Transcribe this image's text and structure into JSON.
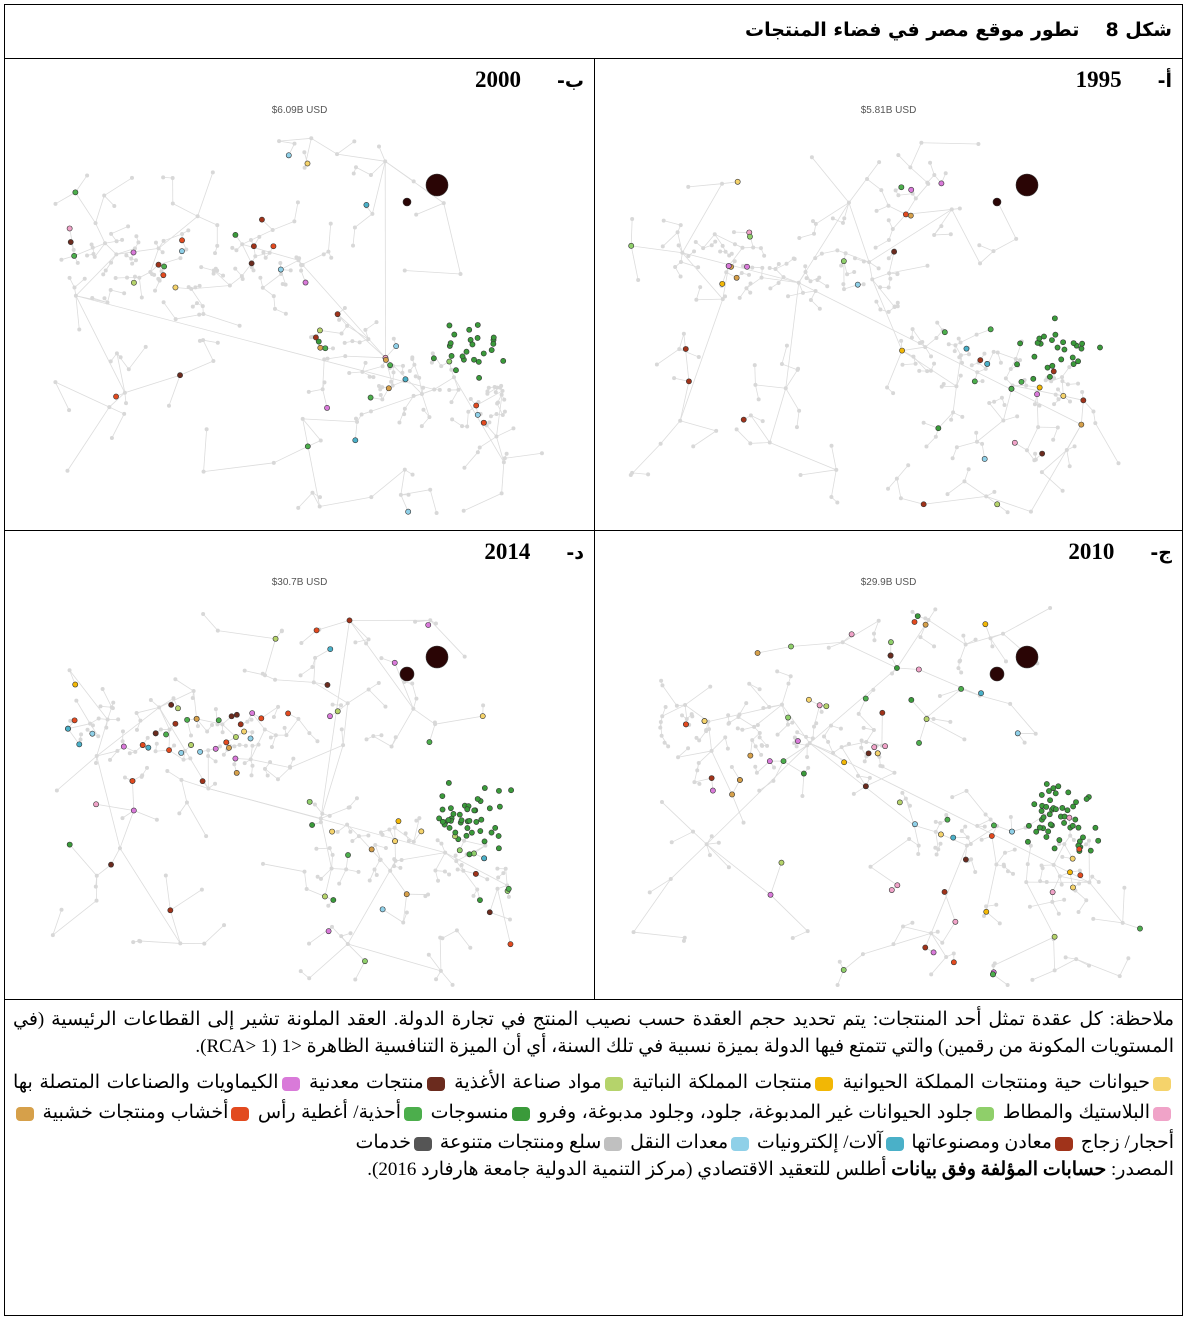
{
  "figure": {
    "label": "شكل 8",
    "title": "تطور موقع مصر في فضاء المنتجات"
  },
  "panels": [
    {
      "label": "أ-",
      "year": "1995",
      "value": "$5.81B USD"
    },
    {
      "label": "ب-",
      "year": "2000",
      "value": "$6.09B USD"
    },
    {
      "label": "ج-",
      "year": "2010",
      "value": "$29.9B USD"
    },
    {
      "label": "د-",
      "year": "2014",
      "value": "$30.7B USD"
    }
  ],
  "note": "ملاحظة: كل عقدة تمثل أحد المنتجات: يتم تحديد حجم العقدة حسب نصيب المنتج في تجارة الدولة. العقد الملونة تشير إلى القطاعات الرئيسية (في المستويات المكونة من رقمين) والتي تتمتع فيها الدولة بميزة نسبية في تلك السنة، أي أن الميزة التنافسية الظاهرة <1 (RCA> 1).",
  "legend": [
    {
      "name": "حيوانات حية ومنتجات المملكة الحيوانية",
      "color": "#f5d36b"
    },
    {
      "name": "منتجات المملكة النباتية",
      "color": "#f2b705"
    },
    {
      "name": "مواد صناعة الأغذية",
      "color": "#b5d36b"
    },
    {
      "name": "منتجات معدنية",
      "color": "#6b2b1e"
    },
    {
      "name": "الكيماويات والصناعات المتصلة بها",
      "color": "#d97ad9"
    },
    {
      "name": "البلاستيك والمطاط",
      "color": "#f0a3c8"
    },
    {
      "name": "جلود الحيوانات غير المدبوغة، جلود، وجلود مدبوغة، وفرو",
      "color": "#8fcf6a"
    },
    {
      "name": "منسوجات",
      "color": "#3a9a3a"
    },
    {
      "name": "أحذية/ أغطية رأس",
      "color": "#4cae4c"
    },
    {
      "name": "أخشاب ومنتجات خشبية",
      "color": "#e24a1f"
    },
    {
      "name": "أحجار/ زجاج",
      "color": "#d6a04a"
    },
    {
      "name": "معادن ومصنوعاتها",
      "color": "#a0331a"
    },
    {
      "name": "آلات/ إلكترونيات",
      "color": "#4ab0c8"
    },
    {
      "name": "معدات النقل",
      "color": "#8fd0e8"
    },
    {
      "name": "سلع ومنتجات متنوعة",
      "color": "#c0c0c0"
    },
    {
      "name": "خدمات",
      "color": "#555555"
    }
  ],
  "source": {
    "prefix": "المصدر:",
    "bold": "حسابات المؤلفة وفق بيانات",
    "text": "أطلس للتعقيد الاقتصادي (مركز التنمية الدولية جامعة هارفارد 2016)."
  }
}
